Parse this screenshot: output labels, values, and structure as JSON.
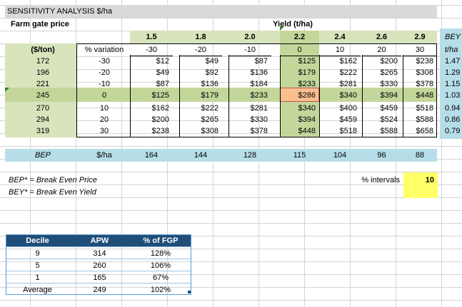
{
  "title": "SENSITIVITY ANALYSIS  $/ha",
  "farm_gate_label": "Farm gate price",
  "yield_label": "Yield (t/ha)",
  "unit_label": "($/ton)",
  "variation_label": "% variation",
  "bey_header": "BEY",
  "bey_unit": "t/ha",
  "yields": [
    "1.5",
    "1.8",
    "2.0",
    "2.2",
    "2.4",
    "2.6",
    "2.9"
  ],
  "yield_variations": [
    "-30",
    "-20",
    "-10",
    "0",
    "10",
    "20",
    "30"
  ],
  "rows": [
    {
      "price": "172",
      "var": "-30",
      "vals": [
        "$12",
        "$49",
        "$87",
        "$125",
        "$162",
        "$200",
        "$238"
      ],
      "bey": "1.47"
    },
    {
      "price": "196",
      "var": "-20",
      "vals": [
        "$49",
        "$92",
        "$136",
        "$179",
        "$222",
        "$265",
        "$308"
      ],
      "bey": "1.29"
    },
    {
      "price": "221",
      "var": "-10",
      "vals": [
        "$87",
        "$136",
        "$184",
        "$233",
        "$281",
        "$330",
        "$378"
      ],
      "bey": "1.15"
    },
    {
      "price": "245",
      "var": "0",
      "vals": [
        "$125",
        "$179",
        "$233",
        "$286",
        "$340",
        "$394",
        "$448"
      ],
      "bey": "1.03"
    },
    {
      "price": "270",
      "var": "10",
      "vals": [
        "$162",
        "$222",
        "$281",
        "$340",
        "$400",
        "$459",
        "$518"
      ],
      "bey": "0.94"
    },
    {
      "price": "294",
      "var": "20",
      "vals": [
        "$200",
        "$265",
        "$330",
        "$394",
        "$459",
        "$524",
        "$588"
      ],
      "bey": "0.86"
    },
    {
      "price": "319",
      "var": "30",
      "vals": [
        "$238",
        "$308",
        "$378",
        "$448",
        "$518",
        "$588",
        "$658"
      ],
      "bey": "0.79"
    }
  ],
  "bep_row": {
    "label": "BEP",
    "unit": "$/ha",
    "values": [
      "164",
      "144",
      "128",
      "115",
      "104",
      "96",
      "88"
    ]
  },
  "notes": {
    "bep": "BEP* = Break Even Price",
    "bey": "BEY* = Break Even Yield"
  },
  "intervals": {
    "label": "% intervals",
    "value": "10"
  },
  "decile_table": {
    "headers": [
      "Decile",
      "APW",
      "% of FGP"
    ],
    "rows": [
      [
        "9",
        "314",
        "128%"
      ],
      [
        "5",
        "260",
        "106%"
      ],
      [
        "1",
        "165",
        "67%"
      ],
      [
        "Average",
        "249",
        "102%"
      ]
    ]
  },
  "colors": {
    "green_light": "#d8e4bc",
    "green_mid": "#c4d79b",
    "highlight": "#fabf8f",
    "bep_blue": "#b7dee8",
    "input_yellow": "#ffff66",
    "table_header": "#1f4e79"
  }
}
